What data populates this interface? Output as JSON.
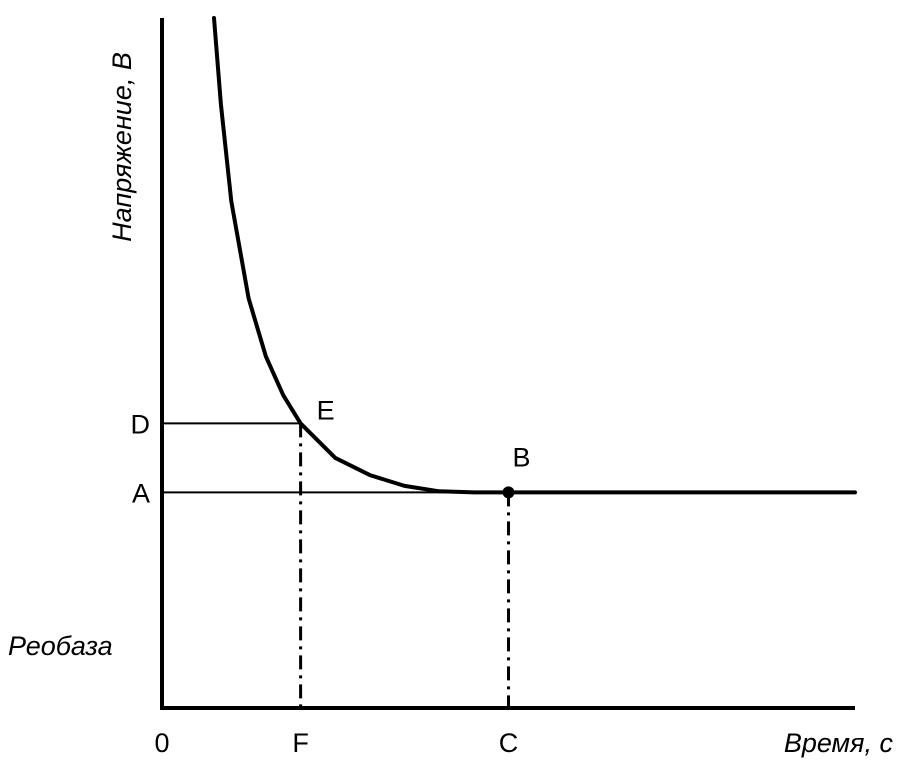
{
  "chart_data": {
    "type": "line",
    "title": "",
    "xlabel": "Время, с",
    "ylabel": "Напряжение, В",
    "x_tick_labels": [
      "0",
      "F",
      "C"
    ],
    "y_tick_labels": [
      "D",
      "A"
    ],
    "annotation_rheobase": "Реобаза",
    "point_labels": [
      "E",
      "B"
    ],
    "grid": false,
    "series": [
      {
        "x": [
          0.15,
          0.17,
          0.2,
          0.25,
          0.3,
          0.35,
          0.4,
          0.5,
          0.6,
          0.7,
          0.8,
          0.9,
          1.0,
          1.1,
          1.2,
          1.3,
          1.4,
          1.5,
          1.6,
          1.7,
          1.8,
          1.9,
          2.0
        ],
        "y": [
          3.2,
          2.8,
          2.35,
          1.9,
          1.63,
          1.45,
          1.32,
          1.16,
          1.08,
          1.03,
          1.005,
          1.0,
          1.0,
          1.0,
          1.0,
          1.0,
          1.0,
          1.0,
          1.0,
          1.0,
          1.0,
          1.0,
          1.0
        ]
      }
    ],
    "points": {
      "E": {
        "x": 0.4,
        "y": 1.32
      },
      "B": {
        "x": 1.0,
        "y": 1.0
      }
    },
    "xlim": [
      0,
      2.0
    ],
    "ylim": [
      0,
      3.2
    ],
    "y_ticks": {
      "D": 1.32,
      "A": 1.0
    },
    "x_ticks": {
      "0": 0,
      "F": 0.4,
      "C": 1.0
    }
  }
}
